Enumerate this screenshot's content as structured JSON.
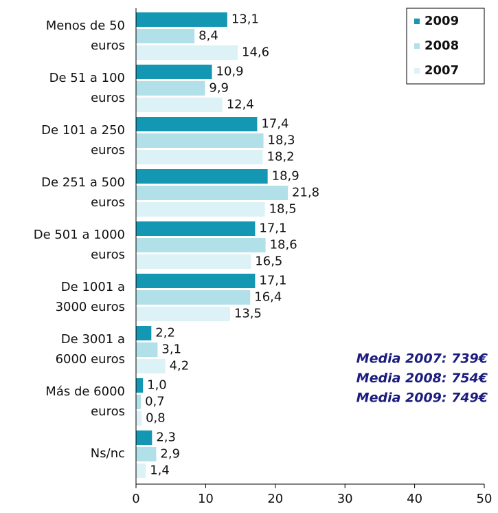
{
  "chart_data": {
    "type": "barh",
    "categories": [
      [
        "Menos de 50",
        "euros"
      ],
      [
        "De 51 a 100",
        "euros"
      ],
      [
        "De 101 a 250",
        "euros"
      ],
      [
        "De 251 a 500",
        "euros"
      ],
      [
        "De 501 a 1000",
        "euros"
      ],
      [
        "De 1001 a",
        "3000 euros"
      ],
      [
        "De 3001 a",
        "6000 euros"
      ],
      [
        "Más de 6000",
        "euros"
      ],
      [
        "Ns/nc"
      ]
    ],
    "series": [
      {
        "name": "2009",
        "color": "#1497b3",
        "values": [
          13.1,
          10.9,
          17.4,
          18.9,
          17.1,
          17.1,
          2.2,
          1.0,
          2.3
        ],
        "value_labels": [
          "13,1",
          "10,9",
          "17,4",
          "18,9",
          "17,1",
          "17,1",
          "2,2",
          "1,0",
          "2,3"
        ]
      },
      {
        "name": "2008",
        "color": "#b1e0e9",
        "values": [
          8.4,
          9.9,
          18.3,
          21.8,
          18.6,
          16.4,
          3.1,
          0.7,
          2.9
        ],
        "value_labels": [
          "8,4",
          "9,9",
          "18,3",
          "21,8",
          "18,6",
          "16,4",
          "3,1",
          "0,7",
          "2,9"
        ]
      },
      {
        "name": "2007",
        "color": "#dcf2f6",
        "values": [
          14.6,
          12.4,
          18.2,
          18.5,
          16.5,
          13.5,
          4.2,
          0.8,
          1.4
        ],
        "value_labels": [
          "14,6",
          "12,4",
          "18,2",
          "18,5",
          "16,5",
          "13,5",
          "4,2",
          "0,8",
          "1,4"
        ]
      }
    ],
    "xlim": [
      0,
      50
    ],
    "xticks": [
      0,
      10,
      20,
      30,
      40,
      50
    ],
    "legend": "top-right",
    "annotations": [
      "Media 2007: 739€",
      "Media 2008: 754€",
      "Media 2009: 749€"
    ]
  }
}
